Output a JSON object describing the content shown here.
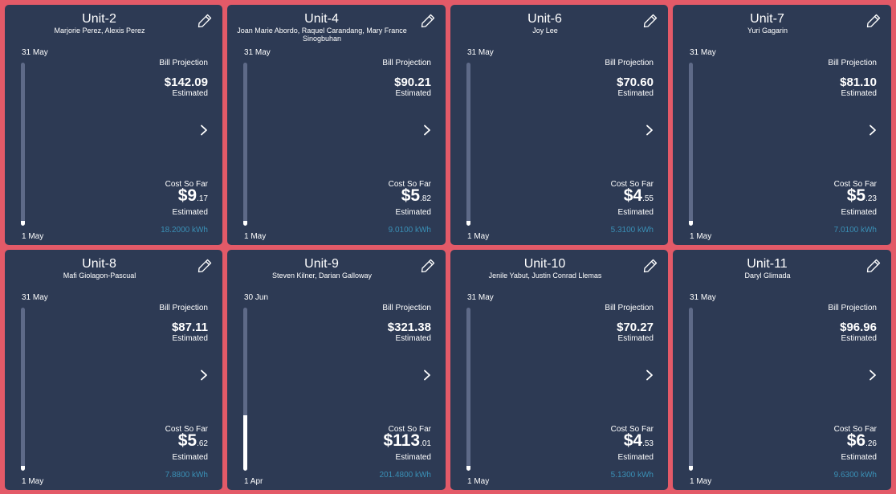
{
  "theme": {
    "background": "#E35A68",
    "card": "#2D3A54",
    "bar_track": "#5E6A88",
    "bar_fill": "#FFFFFF",
    "kwh_color": "#3A8FB5"
  },
  "labels": {
    "bill_projection": "Bill Projection",
    "cost_so_far": "Cost So Far",
    "estimated": "Estimated"
  },
  "units": [
    {
      "name": "Unit-2",
      "occupants": "Marjorie Perez, Alexis Perez",
      "period_end": "31 May",
      "period_start": "1 May",
      "bill_projection": "$142.09",
      "cost_dollars": "$9",
      "cost_cents": ".17",
      "kwh": "18.2000 kWh",
      "progress_pct": 3
    },
    {
      "name": "Unit-4",
      "occupants": "Joan Marie Abordo, Raquel Carandang, Mary France Sinogbuhan",
      "period_end": "31 May",
      "period_start": "1 May",
      "bill_projection": "$90.21",
      "cost_dollars": "$5",
      "cost_cents": ".82",
      "kwh": "9.0100 kWh",
      "progress_pct": 3
    },
    {
      "name": "Unit-6",
      "occupants": "Joy Lee",
      "period_end": "31 May",
      "period_start": "1 May",
      "bill_projection": "$70.60",
      "cost_dollars": "$4",
      "cost_cents": ".55",
      "kwh": "5.3100 kWh",
      "progress_pct": 3
    },
    {
      "name": "Unit-7",
      "occupants": "Yuri Gagarin",
      "period_end": "31 May",
      "period_start": "1 May",
      "bill_projection": "$81.10",
      "cost_dollars": "$5",
      "cost_cents": ".23",
      "kwh": "7.0100 kWh",
      "progress_pct": 3
    },
    {
      "name": "Unit-8",
      "occupants": "Mafi Giolagon-Pascual",
      "period_end": "31 May",
      "period_start": "1 May",
      "bill_projection": "$87.11",
      "cost_dollars": "$5",
      "cost_cents": ".62",
      "kwh": "7.8800 kWh",
      "progress_pct": 3
    },
    {
      "name": "Unit-9",
      "occupants": "Steven Kilner, Darian Galloway",
      "period_end": "30 Jun",
      "period_start": "1 Apr",
      "bill_projection": "$321.38",
      "cost_dollars": "$113",
      "cost_cents": ".01",
      "kwh": "201.4800 kWh",
      "progress_pct": 34
    },
    {
      "name": "Unit-10",
      "occupants": "Jenile Yabut, Justin Conrad Llemas",
      "period_end": "31 May",
      "period_start": "1 May",
      "bill_projection": "$70.27",
      "cost_dollars": "$4",
      "cost_cents": ".53",
      "kwh": "5.1300 kWh",
      "progress_pct": 3
    },
    {
      "name": "Unit-11",
      "occupants": "Daryl Glimada",
      "period_end": "31 May",
      "period_start": "1 May",
      "bill_projection": "$96.96",
      "cost_dollars": "$6",
      "cost_cents": ".26",
      "kwh": "9.6300 kWh",
      "progress_pct": 3
    }
  ],
  "icons": {
    "edit": "pencil-icon",
    "navigate": "chevron-right-icon"
  }
}
